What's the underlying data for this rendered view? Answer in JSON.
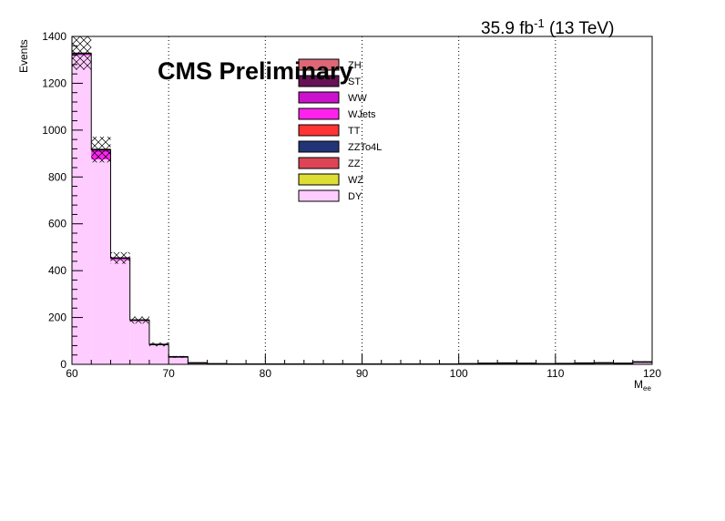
{
  "chart_data": {
    "type": "bar",
    "stacked": true,
    "lumi_text": "35.9 fb",
    "lumi_sup": "-1",
    "lumi_energy": " (13 TeV)",
    "experiment_label": "CMS Preliminary",
    "ylabel": "Events",
    "xlabel_main": "M",
    "xlabel_sub": "ee",
    "xlim": [
      60,
      120
    ],
    "ylim": [
      0,
      1400
    ],
    "x_ticks": [
      "60",
      "70",
      "80",
      "90",
      "100",
      "110",
      "120"
    ],
    "y_ticks": [
      "0",
      "200",
      "400",
      "600",
      "800",
      "1000",
      "1200",
      "1400"
    ],
    "grid_vertical": true,
    "bin_edges": [
      60,
      62,
      64,
      66,
      68,
      70,
      72,
      74,
      76,
      78,
      80,
      82,
      84,
      86,
      88,
      90,
      92,
      94,
      96,
      98,
      100,
      102,
      104,
      106,
      108,
      110,
      112,
      114,
      116,
      118,
      120
    ],
    "series": [
      {
        "name": "DY",
        "color": "#ffccff",
        "values": [
          1320,
          875,
          445,
          185,
          85,
          32,
          6,
          2,
          1,
          1,
          1,
          1,
          1,
          1,
          1,
          1,
          1,
          1,
          1,
          1,
          2,
          4,
          5,
          4,
          2,
          3,
          5,
          6,
          4,
          10
        ]
      },
      {
        "name": "WZ",
        "color": "#dddd33",
        "values": [
          0,
          0,
          0,
          0,
          0,
          0,
          0,
          0,
          0,
          0,
          0,
          0,
          0,
          0,
          0,
          0,
          0,
          0,
          0,
          0,
          0,
          0,
          0,
          0,
          0,
          0,
          0,
          0,
          0,
          0
        ]
      },
      {
        "name": "ZZ",
        "color": "#dd4455",
        "values": [
          0,
          0,
          0,
          0,
          0,
          0,
          0,
          0,
          0,
          0,
          0,
          0,
          0,
          0,
          0,
          0,
          0,
          0,
          0,
          0,
          0,
          0,
          0,
          0,
          0,
          0,
          0,
          0,
          0,
          0
        ]
      },
      {
        "name": "ZZTo4L",
        "color": "#223377",
        "values": [
          0,
          0,
          0,
          0,
          0,
          0,
          0,
          0,
          0,
          0,
          0,
          0,
          0,
          0,
          0,
          0,
          0,
          0,
          0,
          0,
          0,
          0,
          0,
          0,
          0,
          0,
          0,
          0,
          0,
          0
        ]
      },
      {
        "name": "TT",
        "color": "#ff3333",
        "values": [
          0,
          0,
          0,
          0,
          0,
          0,
          0,
          0,
          0,
          0,
          0,
          0,
          0,
          0,
          0,
          0,
          0,
          0,
          0,
          0,
          0,
          0,
          0,
          0,
          0,
          0,
          0,
          0,
          0,
          0
        ]
      },
      {
        "name": "WJets",
        "color": "#ff22ee",
        "values": [
          0,
          30,
          5,
          3,
          0,
          0,
          0,
          0,
          0,
          0,
          0,
          0,
          0,
          0,
          0,
          0,
          0,
          0,
          0,
          0,
          0,
          0,
          0,
          0,
          0,
          0,
          0,
          0,
          0,
          0
        ]
      },
      {
        "name": "WW",
        "color": "#cc11cc",
        "values": [
          5,
          10,
          3,
          1,
          0,
          0,
          0,
          0,
          0,
          0,
          0,
          0,
          0,
          0,
          0,
          0,
          0,
          0,
          0,
          0,
          0,
          0,
          0,
          0,
          0,
          0,
          0,
          0,
          0,
          0
        ]
      },
      {
        "name": "ST",
        "color": "#661155",
        "values": [
          3,
          2,
          1,
          0,
          0,
          0,
          0,
          0,
          0,
          0,
          0,
          0,
          0,
          0,
          0,
          0,
          0,
          0,
          0,
          0,
          0,
          0,
          0,
          0,
          0,
          0,
          0,
          0,
          0,
          0
        ]
      },
      {
        "name": "ZH",
        "color": "#dd6677",
        "values": [
          0,
          0,
          0,
          0,
          0,
          0,
          0,
          0,
          0,
          0,
          0,
          0,
          0,
          0,
          0,
          0,
          0,
          0,
          0,
          0,
          0,
          0,
          0,
          0,
          0,
          0,
          0,
          0,
          0,
          0
        ]
      }
    ],
    "legend_order": [
      "ZH",
      "ST",
      "WW",
      "WJets",
      "TT",
      "ZZTo4L",
      "ZZ",
      "WZ",
      "DY"
    ],
    "uncertainty": [
      70,
      55,
      25,
      15,
      8,
      4,
      2,
      1,
      1,
      1,
      1,
      1,
      1,
      1,
      1,
      1,
      1,
      1,
      1,
      1,
      1,
      1,
      2,
      1,
      1,
      1,
      2,
      2,
      1,
      3
    ]
  }
}
